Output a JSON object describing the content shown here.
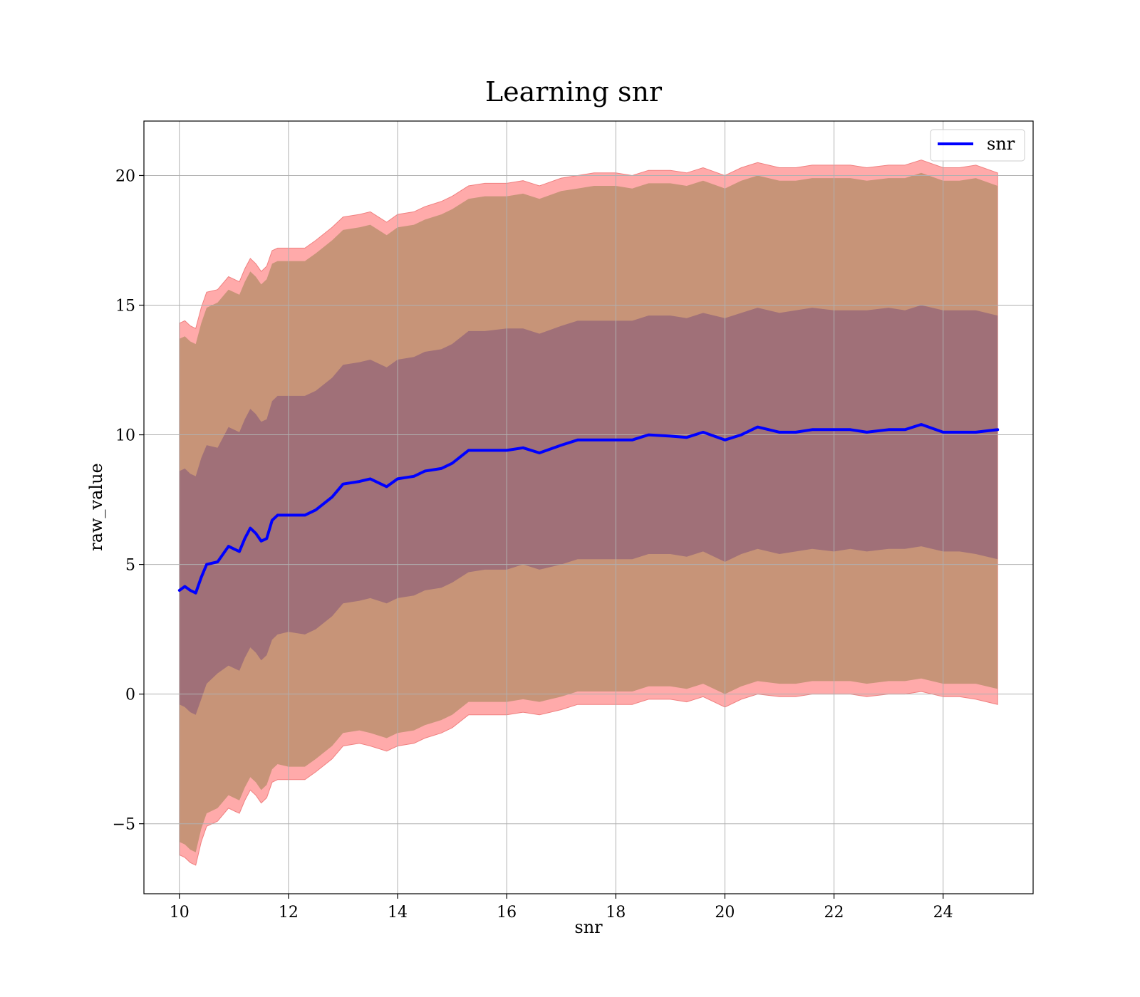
{
  "chart_data": {
    "type": "line",
    "title": "Learning snr",
    "xlabel": "snr",
    "ylabel": "raw_value",
    "xlim": [
      9.35,
      25.65
    ],
    "ylim": [
      -7.7,
      22.1
    ],
    "x_ticks": [
      10,
      12,
      14,
      16,
      18,
      20,
      22,
      24
    ],
    "x_tick_labels": [
      "10",
      "12",
      "14",
      "16",
      "18",
      "20",
      "22",
      "24"
    ],
    "y_ticks": [
      -5,
      0,
      5,
      10,
      15,
      20
    ],
    "y_tick_labels": [
      "−5",
      "0",
      "5",
      "10",
      "15",
      "20"
    ],
    "grid": true,
    "legend": {
      "position": "top-right",
      "entries": [
        "snr"
      ]
    },
    "colors": {
      "line": "#0000ff",
      "inner_band": "#a07078",
      "middle_band": "#c79478",
      "outer_band": "#ffaaaa",
      "outer_band_edge": "#f08080"
    },
    "series": [
      {
        "name": "snr",
        "x": [
          10.0,
          10.1,
          10.2,
          10.3,
          10.4,
          10.5,
          10.7,
          10.9,
          11.0,
          11.1,
          11.2,
          11.3,
          11.4,
          11.5,
          11.6,
          11.7,
          11.8,
          12.0,
          12.3,
          12.5,
          12.8,
          13.0,
          13.3,
          13.5,
          13.8,
          14.0,
          14.3,
          14.5,
          14.8,
          15.0,
          15.3,
          15.6,
          16.0,
          16.3,
          16.6,
          17.0,
          17.3,
          17.6,
          18.0,
          18.3,
          18.6,
          19.0,
          19.3,
          19.6,
          20.0,
          20.3,
          20.6,
          21.0,
          21.3,
          21.6,
          22.0,
          22.3,
          22.6,
          23.0,
          23.3,
          23.6,
          24.0,
          24.3,
          24.6,
          25.0
        ],
        "mean": [
          4.0,
          4.15,
          4.0,
          3.9,
          4.5,
          5.0,
          5.1,
          5.7,
          5.6,
          5.5,
          6.0,
          6.4,
          6.2,
          5.9,
          6.0,
          6.7,
          6.9,
          6.9,
          6.9,
          7.1,
          7.6,
          8.1,
          8.2,
          8.3,
          8.0,
          8.3,
          8.4,
          8.6,
          8.7,
          8.9,
          9.4,
          9.4,
          9.4,
          9.5,
          9.3,
          9.6,
          9.8,
          9.8,
          9.8,
          9.8,
          10.0,
          9.95,
          9.9,
          10.1,
          9.8,
          10.0,
          10.3,
          10.1,
          10.1,
          10.2,
          10.2,
          10.2,
          10.1,
          10.2,
          10.2,
          10.4,
          10.1,
          10.1,
          10.1,
          10.2
        ],
        "inner_lower": [
          -0.4,
          -0.5,
          -0.7,
          -0.8,
          -0.2,
          0.4,
          0.8,
          1.1,
          1.0,
          0.9,
          1.4,
          1.8,
          1.6,
          1.3,
          1.5,
          2.1,
          2.3,
          2.4,
          2.3,
          2.5,
          3.0,
          3.5,
          3.6,
          3.7,
          3.5,
          3.7,
          3.8,
          4.0,
          4.1,
          4.3,
          4.7,
          4.8,
          4.8,
          5.0,
          4.8,
          5.0,
          5.2,
          5.2,
          5.2,
          5.2,
          5.4,
          5.4,
          5.3,
          5.5,
          5.1,
          5.4,
          5.6,
          5.4,
          5.5,
          5.6,
          5.5,
          5.6,
          5.5,
          5.6,
          5.6,
          5.7,
          5.5,
          5.5,
          5.4,
          5.2
        ],
        "inner_upper": [
          8.6,
          8.7,
          8.5,
          8.4,
          9.1,
          9.6,
          9.5,
          10.3,
          10.2,
          10.1,
          10.6,
          11.0,
          10.8,
          10.5,
          10.6,
          11.3,
          11.5,
          11.5,
          11.5,
          11.7,
          12.2,
          12.7,
          12.8,
          12.9,
          12.6,
          12.9,
          13.0,
          13.2,
          13.3,
          13.5,
          14.0,
          14.0,
          14.1,
          14.1,
          13.9,
          14.2,
          14.4,
          14.4,
          14.4,
          14.4,
          14.6,
          14.6,
          14.5,
          14.7,
          14.5,
          14.7,
          14.9,
          14.7,
          14.8,
          14.9,
          14.8,
          14.8,
          14.8,
          14.9,
          14.8,
          15.0,
          14.8,
          14.8,
          14.8,
          14.6
        ],
        "middle_lower": [
          -5.7,
          -5.8,
          -6.0,
          -6.1,
          -5.2,
          -4.6,
          -4.4,
          -3.9,
          -4.0,
          -4.1,
          -3.6,
          -3.2,
          -3.4,
          -3.7,
          -3.5,
          -2.9,
          -2.7,
          -2.8,
          -2.8,
          -2.5,
          -2.0,
          -1.5,
          -1.4,
          -1.5,
          -1.7,
          -1.5,
          -1.4,
          -1.2,
          -1.0,
          -0.8,
          -0.3,
          -0.3,
          -0.3,
          -0.2,
          -0.3,
          -0.1,
          0.1,
          0.1,
          0.1,
          0.1,
          0.3,
          0.3,
          0.2,
          0.4,
          0.0,
          0.3,
          0.5,
          0.4,
          0.4,
          0.5,
          0.5,
          0.5,
          0.4,
          0.5,
          0.5,
          0.6,
          0.4,
          0.4,
          0.4,
          0.2
        ],
        "middle_upper": [
          13.7,
          13.8,
          13.6,
          13.5,
          14.3,
          14.9,
          15.1,
          15.6,
          15.5,
          15.4,
          15.9,
          16.3,
          16.1,
          15.8,
          16.0,
          16.6,
          16.7,
          16.7,
          16.7,
          17.0,
          17.5,
          17.9,
          18.0,
          18.1,
          17.7,
          18.0,
          18.1,
          18.3,
          18.5,
          18.7,
          19.1,
          19.2,
          19.2,
          19.3,
          19.1,
          19.4,
          19.5,
          19.6,
          19.6,
          19.5,
          19.7,
          19.7,
          19.6,
          19.8,
          19.5,
          19.8,
          20.0,
          19.8,
          19.8,
          19.9,
          19.9,
          19.9,
          19.8,
          19.9,
          19.9,
          20.1,
          19.8,
          19.8,
          19.9,
          19.6
        ],
        "outer_lower": [
          -6.2,
          -6.3,
          -6.5,
          -6.6,
          -5.7,
          -5.1,
          -4.9,
          -4.4,
          -4.5,
          -4.6,
          -4.1,
          -3.7,
          -3.9,
          -4.2,
          -4.0,
          -3.4,
          -3.3,
          -3.3,
          -3.3,
          -3.0,
          -2.5,
          -2.0,
          -1.9,
          -2.0,
          -2.2,
          -2.0,
          -1.9,
          -1.7,
          -1.5,
          -1.3,
          -0.8,
          -0.8,
          -0.8,
          -0.7,
          -0.8,
          -0.6,
          -0.4,
          -0.4,
          -0.4,
          -0.4,
          -0.2,
          -0.2,
          -0.3,
          -0.1,
          -0.5,
          -0.2,
          0.0,
          -0.1,
          -0.1,
          0.0,
          0.0,
          0.0,
          -0.1,
          0.0,
          0.0,
          0.1,
          -0.1,
          -0.1,
          -0.2,
          -0.4
        ],
        "outer_upper": [
          14.3,
          14.4,
          14.2,
          14.1,
          14.9,
          15.5,
          15.6,
          16.1,
          16.0,
          15.9,
          16.4,
          16.8,
          16.6,
          16.3,
          16.5,
          17.1,
          17.2,
          17.2,
          17.2,
          17.5,
          18.0,
          18.4,
          18.5,
          18.6,
          18.2,
          18.5,
          18.6,
          18.8,
          19.0,
          19.2,
          19.6,
          19.7,
          19.7,
          19.8,
          19.6,
          19.9,
          20.0,
          20.1,
          20.1,
          20.0,
          20.2,
          20.2,
          20.1,
          20.3,
          20.0,
          20.3,
          20.5,
          20.3,
          20.3,
          20.4,
          20.4,
          20.4,
          20.3,
          20.4,
          20.4,
          20.6,
          20.3,
          20.3,
          20.4,
          20.1
        ]
      }
    ]
  }
}
